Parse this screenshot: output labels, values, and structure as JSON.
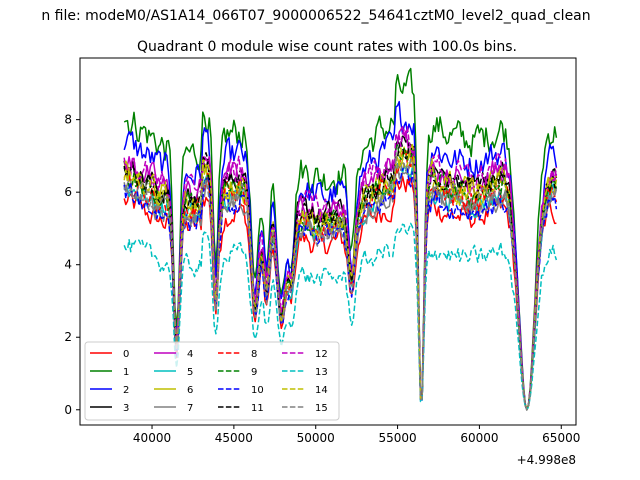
{
  "figure": {
    "suptitle": "n file: modeM0/AS1A14_066T07_9000006522_54641cztM0_level2_quad_clean",
    "title": "Quadrant 0 module wise count rates with 100.0s bins."
  },
  "chart_data": {
    "type": "line",
    "title": "Quadrant 0 module wise count rates with 100.0s bins.",
    "xlabel": "",
    "ylabel": "",
    "x_offset_label": "+4.998e8",
    "xlim": [
      35600,
      65900
    ],
    "ylim": [
      -0.42,
      9.7
    ],
    "x_range_data": [
      38300,
      64700
    ],
    "xticks": [
      40000,
      45000,
      50000,
      55000,
      60000,
      65000
    ],
    "xtick_labels": [
      "40000",
      "45000",
      "50000",
      "55000",
      "60000",
      "65000"
    ],
    "yticks": [
      0,
      2,
      4,
      6,
      8
    ],
    "ytick_labels": [
      "0",
      "2",
      "4",
      "6",
      "8"
    ],
    "grid": false,
    "legend_placement": "lower-left",
    "legend_columns": 4,
    "series": [
      {
        "name": "0",
        "color": "#ff0000",
        "dashed": false,
        "level": 5.2,
        "noise": 0.35
      },
      {
        "name": "1",
        "color": "#008000",
        "dashed": false,
        "level": 7.3,
        "noise": 0.5
      },
      {
        "name": "2",
        "color": "#0000ff",
        "dashed": false,
        "level": 6.7,
        "noise": 0.45
      },
      {
        "name": "3",
        "color": "#000000",
        "dashed": false,
        "level": 6.1,
        "noise": 0.35
      },
      {
        "name": "4",
        "color": "#bf00bf",
        "dashed": false,
        "level": 6.2,
        "noise": 0.4
      },
      {
        "name": "5",
        "color": "#00bfbf",
        "dashed": false,
        "level": 5.6,
        "noise": 0.35
      },
      {
        "name": "6",
        "color": "#bfbf00",
        "dashed": false,
        "level": 5.9,
        "noise": 0.4
      },
      {
        "name": "7",
        "color": "#808080",
        "dashed": false,
        "level": 5.5,
        "noise": 0.35
      },
      {
        "name": "8",
        "color": "#ff0000",
        "dashed": true,
        "level": 5.7,
        "noise": 0.35
      },
      {
        "name": "9",
        "color": "#008000",
        "dashed": true,
        "level": 5.8,
        "noise": 0.35
      },
      {
        "name": "10",
        "color": "#0000ff",
        "dashed": true,
        "level": 5.4,
        "noise": 0.35
      },
      {
        "name": "11",
        "color": "#000000",
        "dashed": true,
        "level": 6.0,
        "noise": 0.35
      },
      {
        "name": "12",
        "color": "#bf00bf",
        "dashed": true,
        "level": 6.3,
        "noise": 0.4
      },
      {
        "name": "13",
        "color": "#00bfbf",
        "dashed": true,
        "level": 4.1,
        "noise": 0.3
      },
      {
        "name": "14",
        "color": "#bfbf00",
        "dashed": true,
        "level": 5.9,
        "noise": 0.4
      },
      {
        "name": "15",
        "color": "#808080",
        "dashed": true,
        "level": 5.6,
        "noise": 0.35
      }
    ],
    "dips": [
      {
        "x": 41500,
        "depth": 0.7,
        "width": 250
      },
      {
        "x": 43900,
        "depth": 0.55,
        "width": 250
      },
      {
        "x": 46300,
        "depth": 0.55,
        "width": 350
      },
      {
        "x": 47000,
        "depth": 0.45,
        "width": 300
      },
      {
        "x": 47900,
        "depth": 0.55,
        "width": 400
      },
      {
        "x": 48500,
        "depth": 0.35,
        "width": 300
      },
      {
        "x": 52200,
        "depth": 0.35,
        "width": 300
      },
      {
        "x": 56450,
        "depth": 1.0,
        "width": 220
      },
      {
        "x": 62900,
        "depth": 1.0,
        "width": 700
      }
    ]
  }
}
